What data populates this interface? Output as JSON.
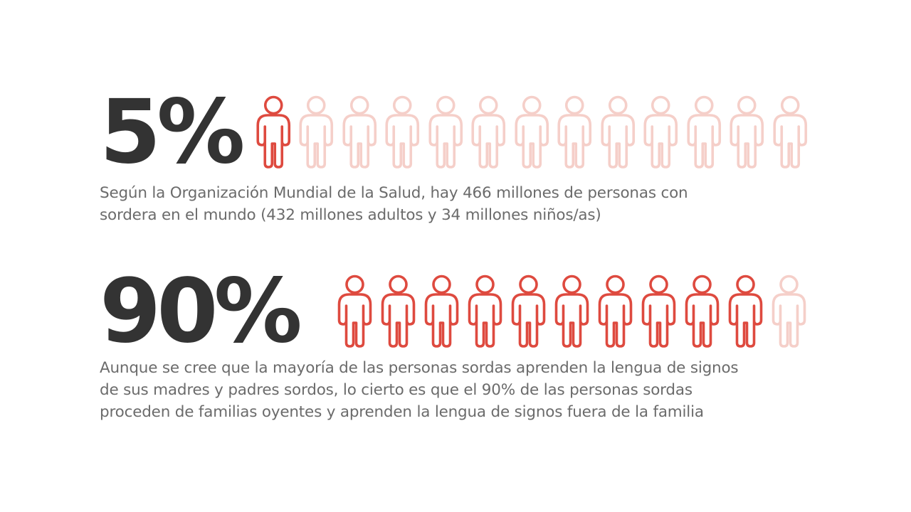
{
  "stat1": {
    "value": "5%",
    "filled_people": 1,
    "total_people": 13,
    "caption_line1": "Según la Organización Mundial de la Salud, hay 466 millones de personas con",
    "caption_line2": "sordera en el mundo (432 millones adultos y 34 millones niños/as)"
  },
  "stat2": {
    "value": "90%",
    "filled_people": 10,
    "total_people": 11,
    "caption_line1": "Aunque se cree que la mayoría de las personas sordas aprenden la lengua de signos",
    "caption_line2": "de sus madres y padres sordos, lo cierto es que el 90% de las personas sordas",
    "caption_line3": "proceden de familias oyentes y aprenden la lengua de signos fuera de la familia"
  },
  "colors": {
    "highlight": "#de4a3f",
    "muted": "#f5cfc9",
    "number": "#333333",
    "caption": "#6b6b6b"
  },
  "icons": {
    "person": "person-outline-icon"
  }
}
